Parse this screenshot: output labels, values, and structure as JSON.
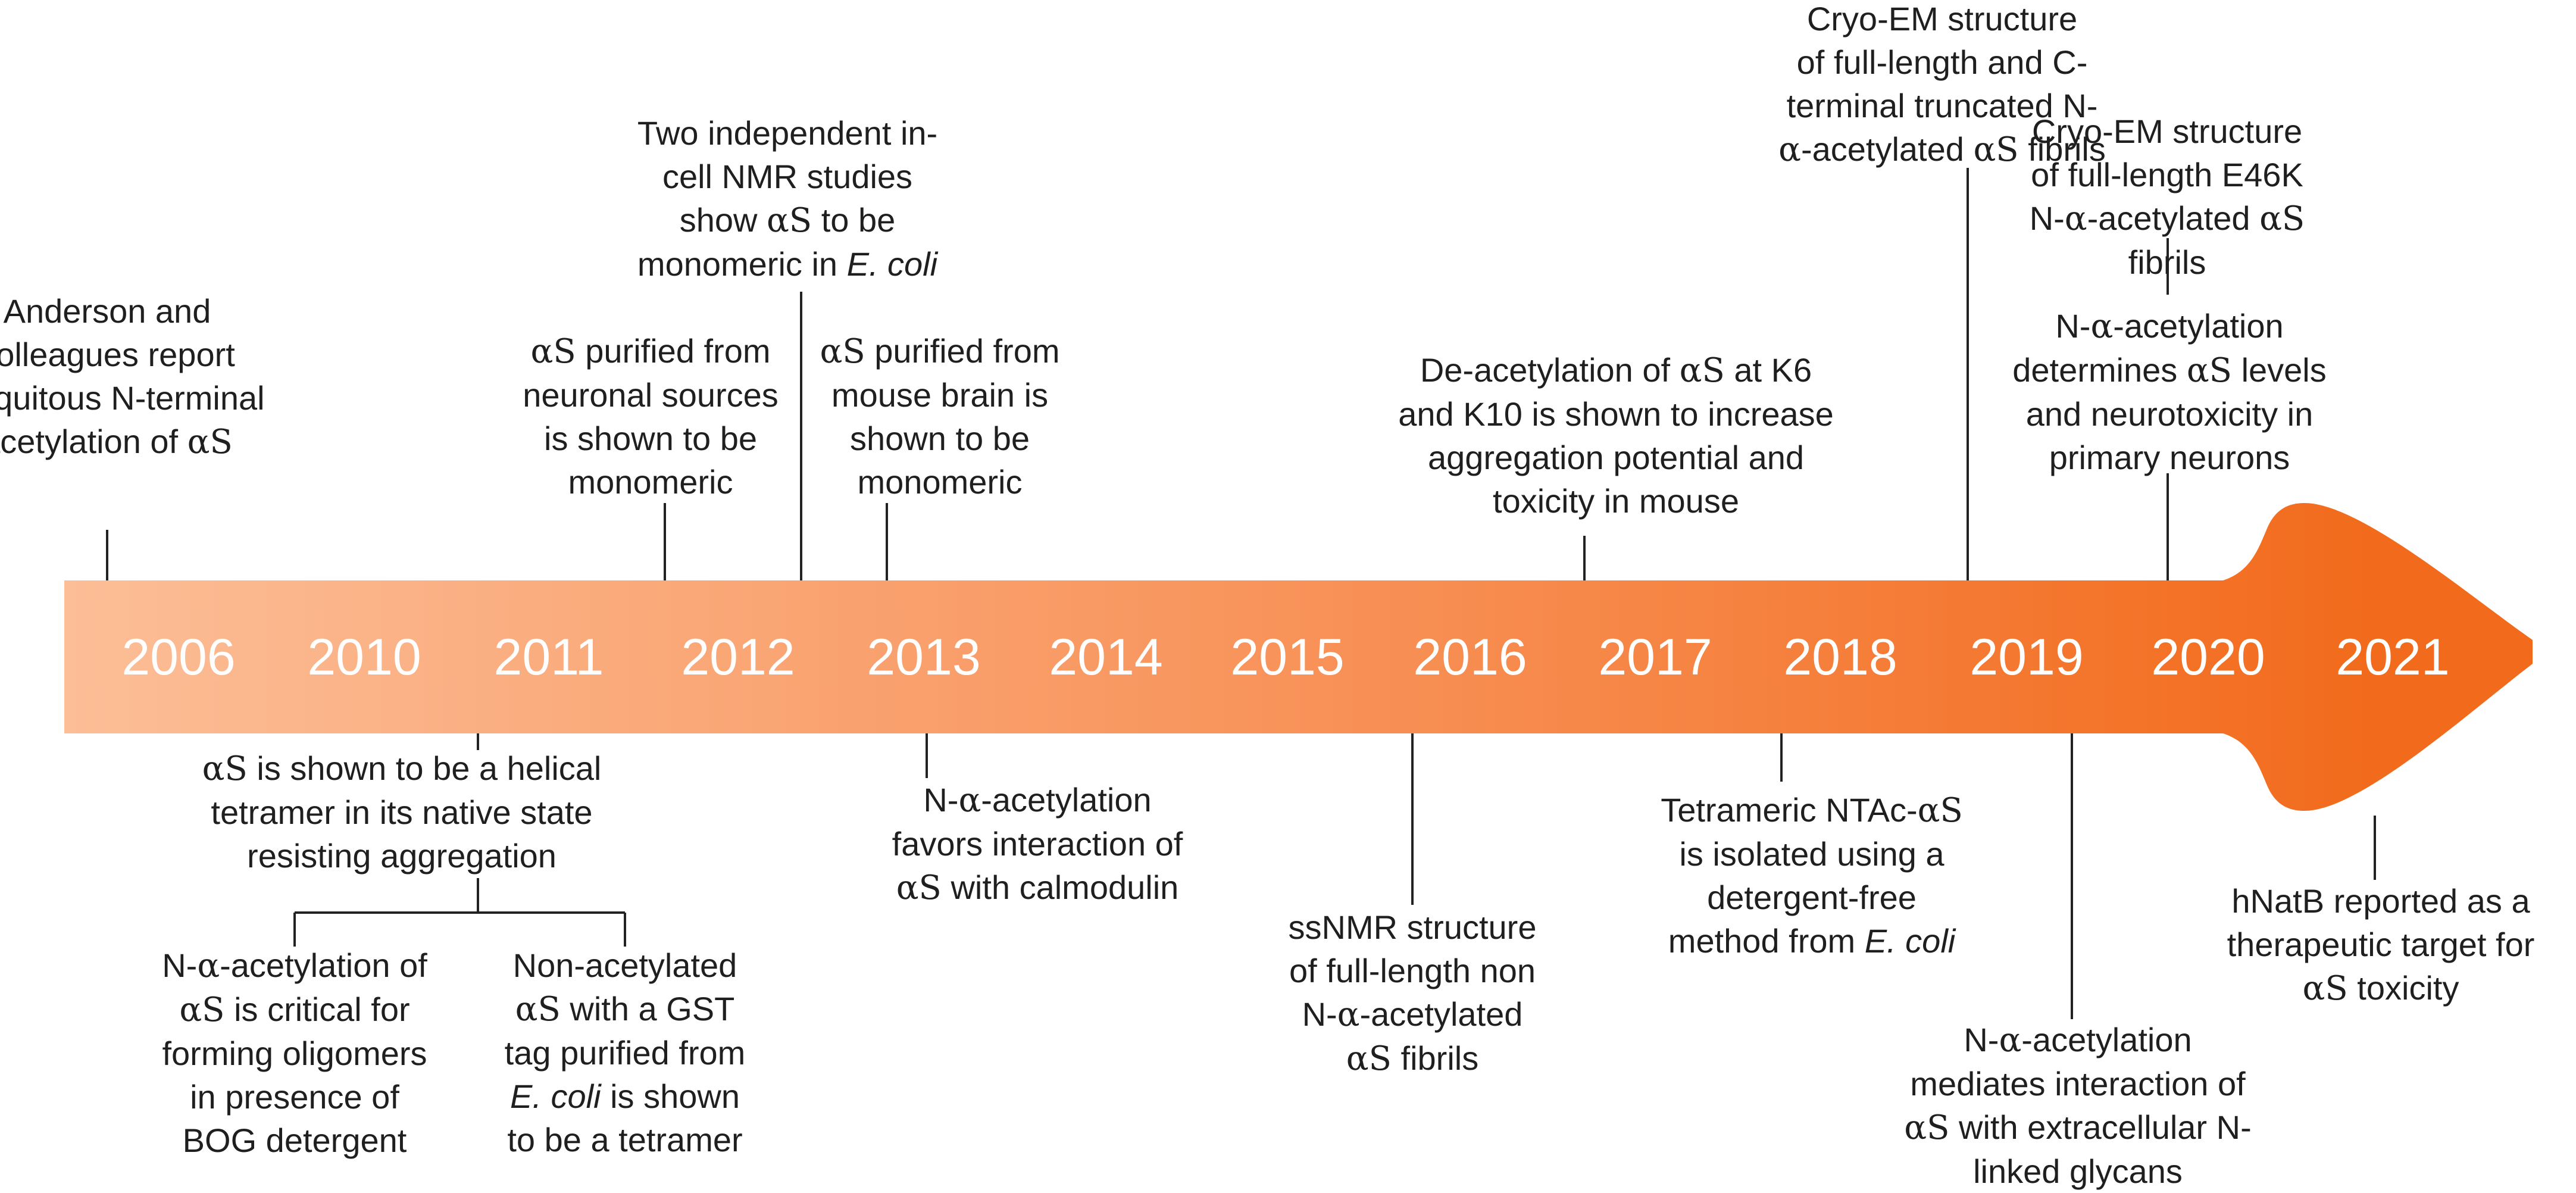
{
  "colors": {
    "arrow_start": "#FCC09A",
    "arrow_mid": "#F8935A",
    "arrow_end": "#F26A1B",
    "text": "#1f1f1f",
    "connector": "#222222",
    "year_label": "#ffffff"
  },
  "years": [
    "2006",
    "2010",
    "2011",
    "2012",
    "2013",
    "2014",
    "2015",
    "2016",
    "2017",
    "2018",
    "2019",
    "2020",
    "2021"
  ],
  "events": {
    "anderson": [
      [
        "Anderson and"
      ],
      [
        "colleagues report"
      ],
      [
        "ubiquitous N-terminal"
      ],
      [
        "acetylation of ",
        "{αS}"
      ]
    ],
    "neuronal_monomeric": [
      [
        "{αS} purified from"
      ],
      [
        "neuronal sources"
      ],
      [
        "is shown to be"
      ],
      [
        "monomeric"
      ]
    ],
    "in_cell_nmr": [
      [
        "Two independent in-"
      ],
      [
        "cell NMR studies"
      ],
      [
        "show {αS} to be"
      ],
      [
        "monomeric in ",
        "[E. coli]"
      ]
    ],
    "mouse_brain_monomeric": [
      [
        "{αS} purified from"
      ],
      [
        "mouse brain is"
      ],
      [
        "shown to be"
      ],
      [
        "monomeric"
      ]
    ],
    "deacetylation_k6_k10": [
      [
        "De-acetylation of {αS} at K6"
      ],
      [
        "and K10 is shown to increase"
      ],
      [
        "aggregation potential and"
      ],
      [
        "toxicity in mouse"
      ]
    ],
    "cryo_em_2019": [
      [
        "Cryo-EM structure"
      ],
      [
        "of full-length and C-"
      ],
      [
        "terminal truncated N-"
      ],
      [
        "{α}-acetylated {αS} fibrils"
      ]
    ],
    "cryo_em_e46k": [
      [
        "Cryo-EM structure"
      ],
      [
        "of full-length E46K"
      ],
      [
        "N-{α}-acetylated {αS}"
      ],
      [
        "fibrils"
      ]
    ],
    "neurotoxicity_neurons": [
      [
        "N-{α}-acetylation"
      ],
      [
        "determines {αS} levels"
      ],
      [
        "and neurotoxicity in"
      ],
      [
        "primary neurons"
      ]
    ],
    "helical_tetramer": [
      [
        "{αS} is shown to be a helical"
      ],
      [
        "tetramer in its native state"
      ],
      [
        "resisting aggregation"
      ]
    ],
    "bog_oligomers": [
      [
        "N-{α}-acetylation of"
      ],
      [
        "{αS} is critical for"
      ],
      [
        "forming oligomers"
      ],
      [
        "in presence of"
      ],
      [
        "BOG detergent"
      ]
    ],
    "gst_tetramer": [
      [
        "Non-acetylated"
      ],
      [
        "{αS} with a GST"
      ],
      [
        "tag purified from"
      ],
      [
        "[E. coli] is shown"
      ],
      [
        "to be a tetramer"
      ]
    ],
    "calmodulin": [
      [
        "N-{α}-acetylation"
      ],
      [
        "favors interaction of"
      ],
      [
        "{αS} with calmodulin"
      ]
    ],
    "ssnmr": [
      [
        "ssNMR structure"
      ],
      [
        "of full-length non"
      ],
      [
        "N-{α}-acetylated"
      ],
      [
        "{αS} fibrils"
      ]
    ],
    "ntac_tetrameric": [
      [
        "Tetrameric NTAc-{αS}"
      ],
      [
        "is isolated using a"
      ],
      [
        "detergent-free"
      ],
      [
        "method from ",
        "[E. coli]"
      ]
    ],
    "glycans": [
      [
        "N-{α}-acetylation"
      ],
      [
        "mediates interaction of"
      ],
      [
        "{αS} with extracellular N-"
      ],
      [
        "linked glycans"
      ]
    ],
    "hnatb": [
      [
        "hNatB reported as a"
      ],
      [
        "therapeutic target for"
      ],
      [
        "{αS} toxicity"
      ]
    ]
  }
}
